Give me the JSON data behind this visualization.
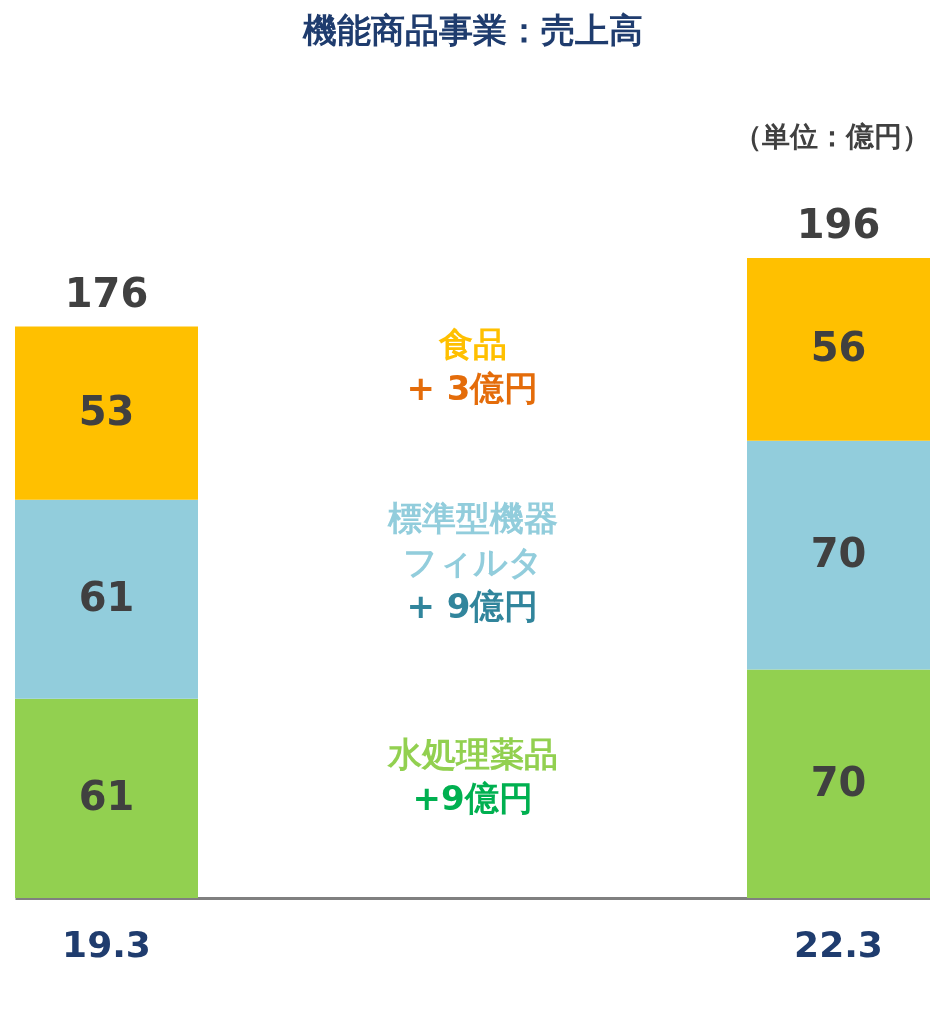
{
  "chart_data": {
    "type": "bar",
    "title": "機能商品事業：売上高",
    "stacked": true,
    "data_labels": true,
    "categories": [
      "19.3",
      "22.3"
    ],
    "series": [
      {
        "name": "水処理薬品",
        "color": "#92d050",
        "values": [
          61,
          70
        ]
      },
      {
        "name": "標準型機器フィルタ",
        "color": "#92cddc",
        "values": [
          61,
          70
        ]
      },
      {
        "name": "食品",
        "color": "#ffc000",
        "values": [
          53,
          56
        ]
      }
    ],
    "totals": [
      "176",
      "196"
    ],
    "annotations": [
      "（単位：億円）",
      "+ 3億円",
      "+ 9億円",
      "+9億円"
    ],
    "grid": false
  }
}
